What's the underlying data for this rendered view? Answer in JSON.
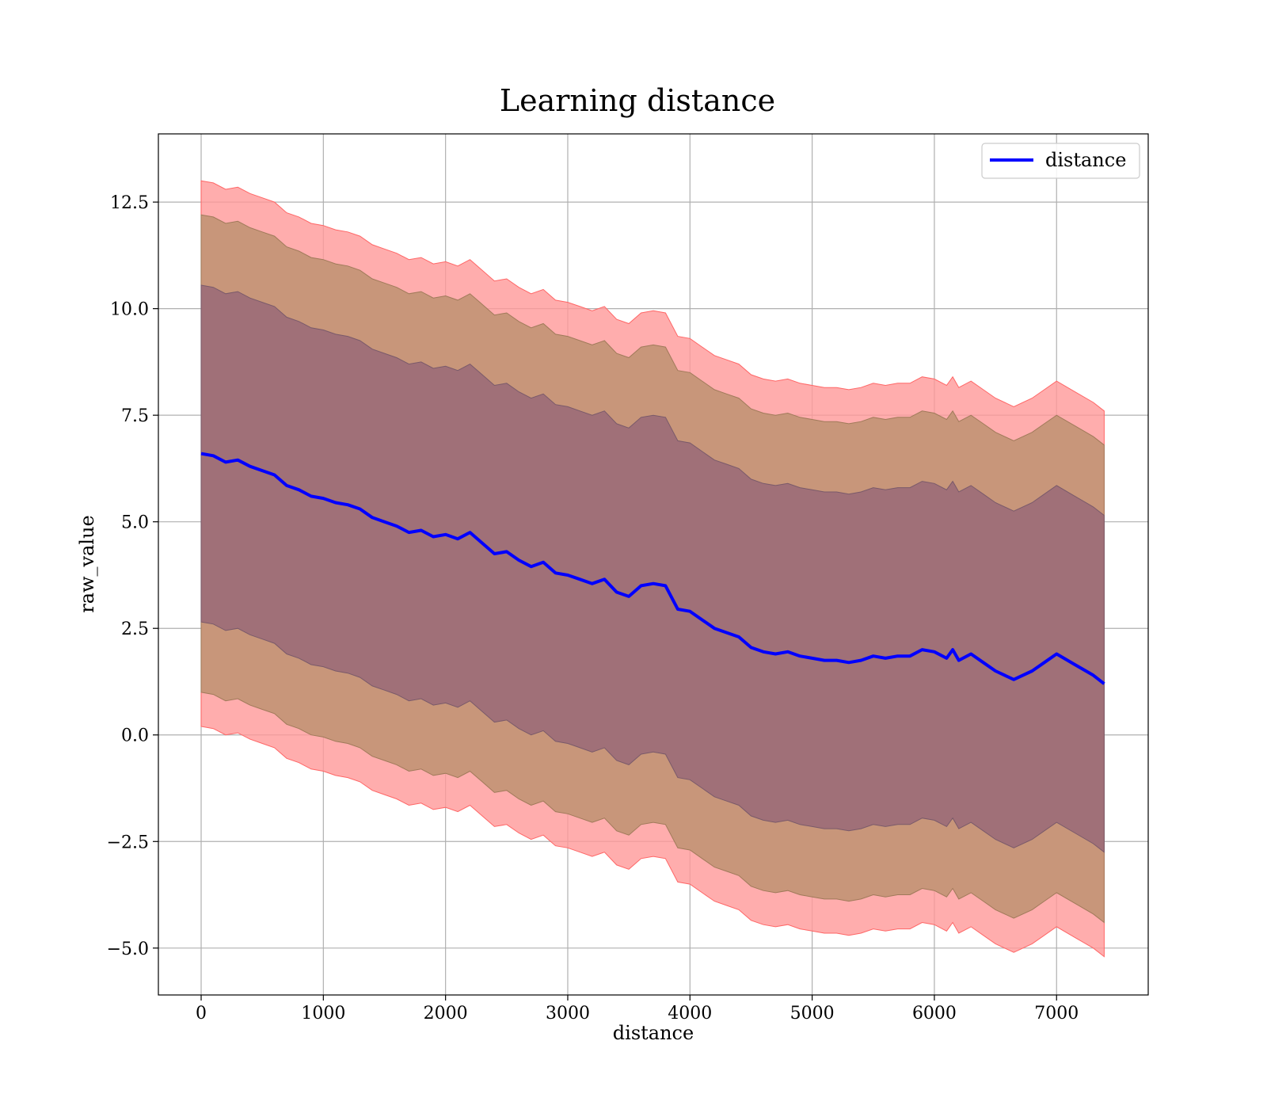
{
  "chart_data": {
    "type": "area",
    "title": "Learning distance",
    "xlabel": "distance",
    "ylabel": "raw_value",
    "xlim": [
      -350,
      7750
    ],
    "ylim": [
      -6.1,
      14.1
    ],
    "xticks": [
      0,
      1000,
      2000,
      3000,
      4000,
      5000,
      6000,
      7000
    ],
    "yticks": [
      -5.0,
      -2.5,
      0.0,
      2.5,
      5.0,
      7.5,
      10.0,
      12.5
    ],
    "xtick_labels": [
      "0",
      "1000",
      "2000",
      "3000",
      "4000",
      "5000",
      "6000",
      "7000"
    ],
    "ytick_labels": [
      "−5.0",
      "−2.5",
      "0.0",
      "2.5",
      "5.0",
      "7.5",
      "10.0",
      "12.5"
    ],
    "grid": true,
    "legend": {
      "placement": "top-right",
      "entries": [
        "distance"
      ]
    },
    "colors": {
      "line": "#0000ff",
      "band_outer": "#ff9999",
      "band_middle": "#c8967a",
      "band_inner": "#a07078"
    },
    "series": [
      {
        "name": "distance",
        "x": [
          0,
          100,
          200,
          300,
          400,
          500,
          600,
          700,
          800,
          900,
          1000,
          1100,
          1200,
          1300,
          1400,
          1500,
          1600,
          1700,
          1800,
          1900,
          2000,
          2100,
          2200,
          2300,
          2400,
          2500,
          2600,
          2700,
          2800,
          2900,
          3000,
          3100,
          3200,
          3300,
          3400,
          3500,
          3600,
          3700,
          3800,
          3900,
          4000,
          4100,
          4200,
          4300,
          4400,
          4500,
          4600,
          4700,
          4800,
          4900,
          5000,
          5100,
          5200,
          5300,
          5400,
          5500,
          5600,
          5700,
          5800,
          5900,
          6000,
          6100,
          6150,
          6200,
          6300,
          6400,
          6500,
          6650,
          6800,
          6900,
          7000,
          7150,
          7300,
          7390
        ],
        "values": [
          6.6,
          6.55,
          6.4,
          6.45,
          6.3,
          6.2,
          6.1,
          5.85,
          5.75,
          5.6,
          5.55,
          5.45,
          5.4,
          5.3,
          5.1,
          5.0,
          4.9,
          4.75,
          4.8,
          4.65,
          4.7,
          4.6,
          4.75,
          4.5,
          4.25,
          4.3,
          4.1,
          3.95,
          4.05,
          3.8,
          3.75,
          3.65,
          3.55,
          3.65,
          3.35,
          3.25,
          3.5,
          3.55,
          3.5,
          2.95,
          2.9,
          2.7,
          2.5,
          2.4,
          2.3,
          2.05,
          1.95,
          1.9,
          1.95,
          1.85,
          1.8,
          1.75,
          1.75,
          1.7,
          1.75,
          1.85,
          1.8,
          1.85,
          1.85,
          2.0,
          1.95,
          1.8,
          2.0,
          1.75,
          1.9,
          1.7,
          1.5,
          1.3,
          1.5,
          1.7,
          1.9,
          1.65,
          1.4,
          1.2
        ]
      },
      {
        "name": "",
        "role": "outer-band-half-width",
        "value": 6.4
      },
      {
        "name": "",
        "role": "middle-band-half-width",
        "value": 5.6
      },
      {
        "name": "",
        "role": "inner-band-half-width",
        "value": 3.95
      }
    ]
  }
}
